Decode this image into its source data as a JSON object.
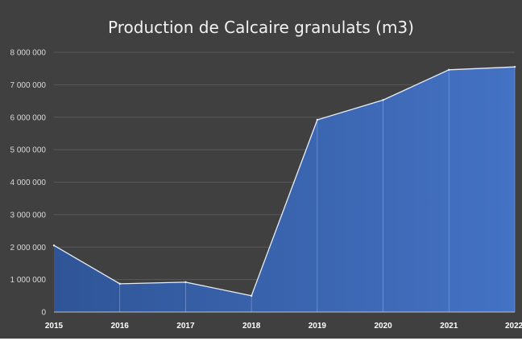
{
  "chart_data": {
    "type": "area",
    "title": "Production de Calcaire granulats (m3)",
    "xlabel": "",
    "ylabel": "",
    "categories": [
      "2015",
      "2016",
      "2017",
      "2018",
      "2019",
      "2020",
      "2021",
      "2022"
    ],
    "values": [
      2050000,
      870000,
      920000,
      500000,
      5920000,
      6530000,
      7460000,
      7550000
    ],
    "ylim": [
      0,
      8000000
    ],
    "yticks": [
      "0",
      "1 000 000",
      "2 000 000",
      "3 000 000",
      "4 000 000",
      "5 000 000",
      "6 000 000",
      "7 000 000",
      "8 000 000"
    ],
    "grid": true,
    "legend": "none",
    "colors": {
      "background": "#404040",
      "fill_top": "#4472c4",
      "fill_bottom": "#2f5597",
      "line": "#e8eef8",
      "grid": "#595959",
      "text": "#d9d9d9",
      "title": "#f2f2f2"
    }
  }
}
